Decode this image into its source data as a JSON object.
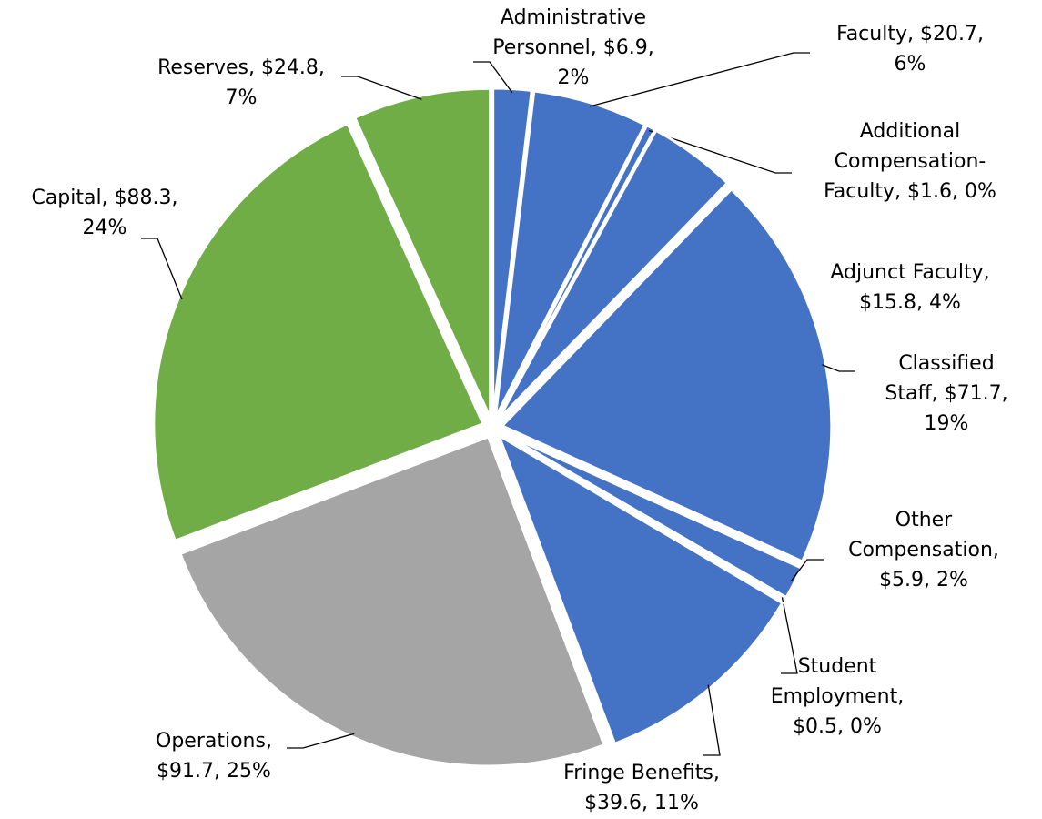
{
  "chart_data": {
    "type": "pie",
    "labels": [
      [
        "Administrative",
        "Personnel, $6.9,",
        "2%"
      ],
      [
        "Faculty, $20.7,",
        "6%"
      ],
      [
        "Additional",
        "Compensation-",
        "Faculty, $1.6, 0%"
      ],
      [
        "Adjunct Faculty,",
        "$15.8, 4%"
      ],
      [
        "Classified",
        "Staff, $71.7,",
        "19%"
      ],
      [
        "Other",
        "Compensation,",
        "$5.9, 2%"
      ],
      [
        "Student",
        "Employment,",
        "$0.5, 0%"
      ],
      [
        "Fringe Benefits,",
        "$39.6, 11%"
      ],
      [
        "Operations,",
        "$91.7, 25%"
      ],
      [
        "Capital, $88.3,",
        "24%"
      ],
      [
        "Reserves, $24.8,",
        "7%"
      ]
    ],
    "values": [
      6.9,
      20.7,
      1.6,
      15.8,
      71.7,
      5.9,
      0.5,
      39.6,
      91.7,
      88.3,
      24.8
    ],
    "colors": [
      "#4472c4",
      "#4472c4",
      "#4472c4",
      "#4472c4",
      "#4472c4",
      "#4472c4",
      "#4472c4",
      "#4472c4",
      "#a5a5a5",
      "#70ad47",
      "#70ad47"
    ]
  }
}
